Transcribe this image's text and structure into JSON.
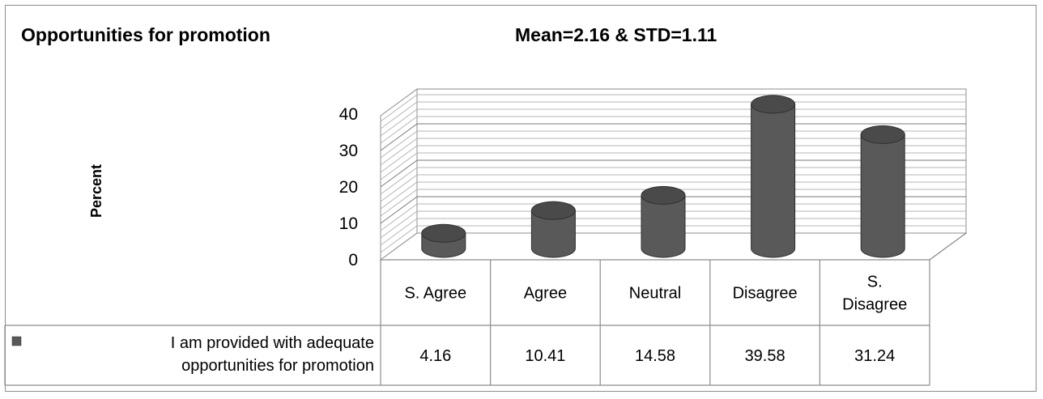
{
  "chart_data": {
    "type": "bar",
    "title": "Opportunities for promotion",
    "subtitle": "Mean=2.16 & STD=1.11",
    "ylabel": "Percent",
    "xlabel": "",
    "ylim": [
      0,
      40
    ],
    "yticks": [
      0,
      10,
      20,
      30,
      40
    ],
    "grid": true,
    "categories": [
      [
        "S. Agree"
      ],
      [
        "Agree"
      ],
      [
        "Neutral"
      ],
      [
        "Disagree"
      ],
      [
        "S.",
        "Disagree"
      ]
    ],
    "series": [
      {
        "name": "I am provided with adequate opportunities for promotion",
        "name_lines": [
          "I am provided with adequate",
          "opportunities for promotion"
        ],
        "values": [
          4.16,
          10.41,
          14.58,
          39.58,
          31.24
        ],
        "value_labels": [
          "4.16",
          "10.41",
          "14.58",
          "39.58",
          "31.24"
        ],
        "color": "#595959"
      }
    ],
    "legend": "data-table"
  }
}
